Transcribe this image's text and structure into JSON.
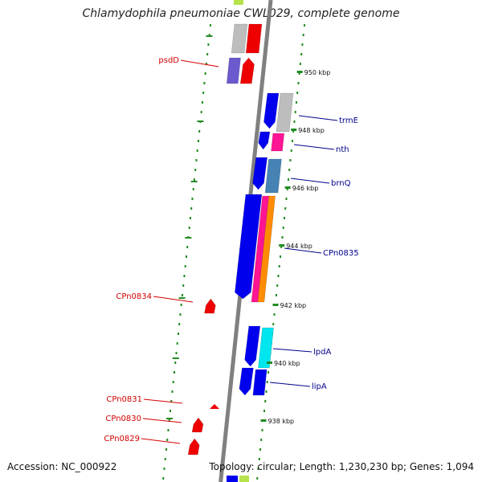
{
  "title": "Chlamydophila pneumoniae CWL029, complete genome",
  "footer": {
    "accession": "Accession: NC_000922",
    "summary": "Topology: circular; Length: 1,230,230 bp; Genes: 1,094"
  },
  "colors": {
    "backbone": "#808080",
    "dots": "#228B22",
    "reverse_label": "#d40000",
    "forward_label": "#00008b",
    "blue": "#0000ee",
    "red": "#ee0000"
  },
  "scale_ticks": [
    {
      "label": "950 kbp"
    },
    {
      "label": "948 kbp"
    },
    {
      "label": "946 kbp"
    },
    {
      "label": "944 kbp"
    },
    {
      "label": "942 kbp"
    },
    {
      "label": "940 kbp"
    },
    {
      "label": "938 kbp"
    }
  ],
  "forward_labels": [
    {
      "name": "trmE"
    },
    {
      "name": "nth"
    },
    {
      "name": "brnQ"
    },
    {
      "name": "CPn0835"
    },
    {
      "name": "lpdA"
    },
    {
      "name": "lipA"
    }
  ],
  "reverse_labels": [
    {
      "name": "psdD"
    },
    {
      "name": "CPn0834"
    },
    {
      "name": "CPn0831"
    },
    {
      "name": "CPn0830"
    },
    {
      "name": "CPn0829"
    }
  ]
}
